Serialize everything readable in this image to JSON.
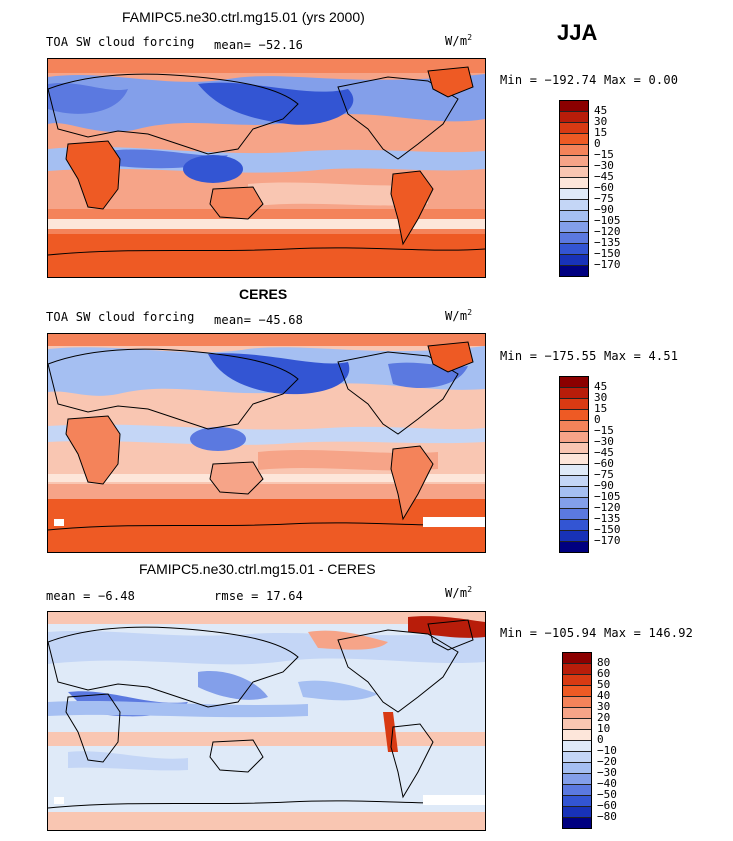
{
  "season": "JJA",
  "units": {
    "base": "W/m",
    "exp": "2"
  },
  "panels": [
    {
      "title": "FAMIPC5.ne30.ctrl.mg15.01 (yrs 2000)",
      "subtitle": "TOA SW cloud forcing",
      "mean_text": "mean= −52.16",
      "minmax_text": "Min = −192.74 Max =    0.00",
      "colorbar": {
        "labels": [
          "45",
          "30",
          "15",
          "0",
          "−15",
          "−30",
          "−45",
          "−60",
          "−75",
          "−90",
          "−105",
          "−120",
          "−135",
          "−150",
          "−170"
        ],
        "colors": [
          "#8b0000",
          "#b81d0a",
          "#d83a13",
          "#ee5a24",
          "#f4835a",
          "#f6a488",
          "#f9c6b2",
          "#fde6da",
          "#dfeaf8",
          "#c4d6f6",
          "#a5bff2",
          "#839fea",
          "#5b79e0",
          "#3355d3",
          "#1832b8",
          "#000080"
        ]
      }
    },
    {
      "title": "CERES",
      "subtitle": "TOA SW cloud forcing",
      "mean_text": "mean= −45.68",
      "minmax_text": "Min = −175.55 Max =    4.51",
      "colorbar": {
        "labels": [
          "45",
          "30",
          "15",
          "0",
          "−15",
          "−30",
          "−45",
          "−60",
          "−75",
          "−90",
          "−105",
          "−120",
          "−135",
          "−150",
          "−170"
        ],
        "colors": [
          "#8b0000",
          "#b81d0a",
          "#d83a13",
          "#ee5a24",
          "#f4835a",
          "#f6a488",
          "#f9c6b2",
          "#fde6da",
          "#dfeaf8",
          "#c4d6f6",
          "#a5bff2",
          "#839fea",
          "#5b79e0",
          "#3355d3",
          "#1832b8",
          "#000080"
        ]
      }
    },
    {
      "title": "FAMIPC5.ne30.ctrl.mg15.01 - CERES",
      "mean_text": "mean =   −6.48",
      "rmse_text": "rmse =   17.64",
      "minmax_text": "Min = −105.94 Max = 146.92",
      "colorbar": {
        "labels": [
          "80",
          "60",
          "50",
          "40",
          "30",
          "20",
          "10",
          "0",
          "−10",
          "−20",
          "−30",
          "−40",
          "−50",
          "−60",
          "−80"
        ],
        "colors": [
          "#8b0000",
          "#b81d0a",
          "#d83a13",
          "#ee5a24",
          "#f4835a",
          "#f6a488",
          "#f9c6b2",
          "#fde6da",
          "#dfeaf8",
          "#c4d6f6",
          "#a5bff2",
          "#839fea",
          "#5b79e0",
          "#3355d3",
          "#1832b8",
          "#000080"
        ]
      }
    }
  ]
}
